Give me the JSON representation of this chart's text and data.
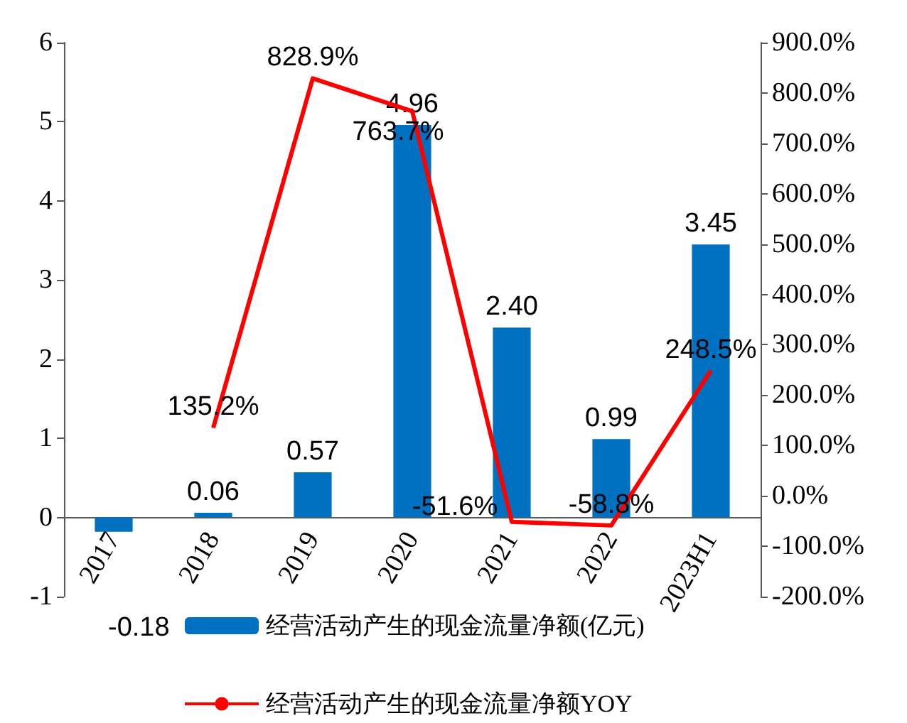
{
  "chart_data": {
    "type": "bar",
    "categories": [
      "2017",
      "2018",
      "2019",
      "2020",
      "2021",
      "2022",
      "2023H1"
    ],
    "series": [
      {
        "name": "经营活动产生的现金流量净额(亿元)",
        "color": "#0070c0",
        "values": [
          -0.18,
          0.06,
          0.57,
          4.96,
          2.4,
          0.99,
          3.45
        ],
        "value_labels": [
          "-0.18",
          "0.06",
          "0.57",
          "4.96",
          "2.40",
          "0.99",
          "3.45"
        ]
      },
      {
        "name": "经营活动产生的现金流量净额YOY",
        "type": "line",
        "axis": "y2",
        "color": "#ff0000",
        "marker": "none",
        "values": [
          null,
          135.2,
          828.9,
          763.7,
          -51.6,
          -58.8,
          248.5
        ],
        "value_labels": [
          null,
          "135.2%",
          "828.9%",
          "763.7%",
          "-51.6%",
          "-58.8%",
          "248.5%"
        ]
      }
    ],
    "ylim": [
      -1,
      6
    ],
    "yticks": [
      -1,
      0,
      1,
      2,
      3,
      4,
      5,
      6
    ],
    "y2lim": [
      -200,
      900
    ],
    "y2ticks": [
      {
        "value": -200,
        "label": "-200.0%"
      },
      {
        "value": -100,
        "label": "-100.0%"
      },
      {
        "value": 0,
        "label": "0.0%"
      },
      {
        "value": 100,
        "label": "100.0%"
      },
      {
        "value": 200,
        "label": "200.0%"
      },
      {
        "value": 300,
        "label": "300.0%"
      },
      {
        "value": 400,
        "label": "400.0%"
      },
      {
        "value": 500,
        "label": "500.0%"
      },
      {
        "value": 600,
        "label": "600.0%"
      },
      {
        "value": 700,
        "label": "700.0%"
      },
      {
        "value": 800,
        "label": "800.0%"
      },
      {
        "value": 900,
        "label": "900.0%"
      }
    ],
    "grid": false,
    "legend": "bottom"
  }
}
